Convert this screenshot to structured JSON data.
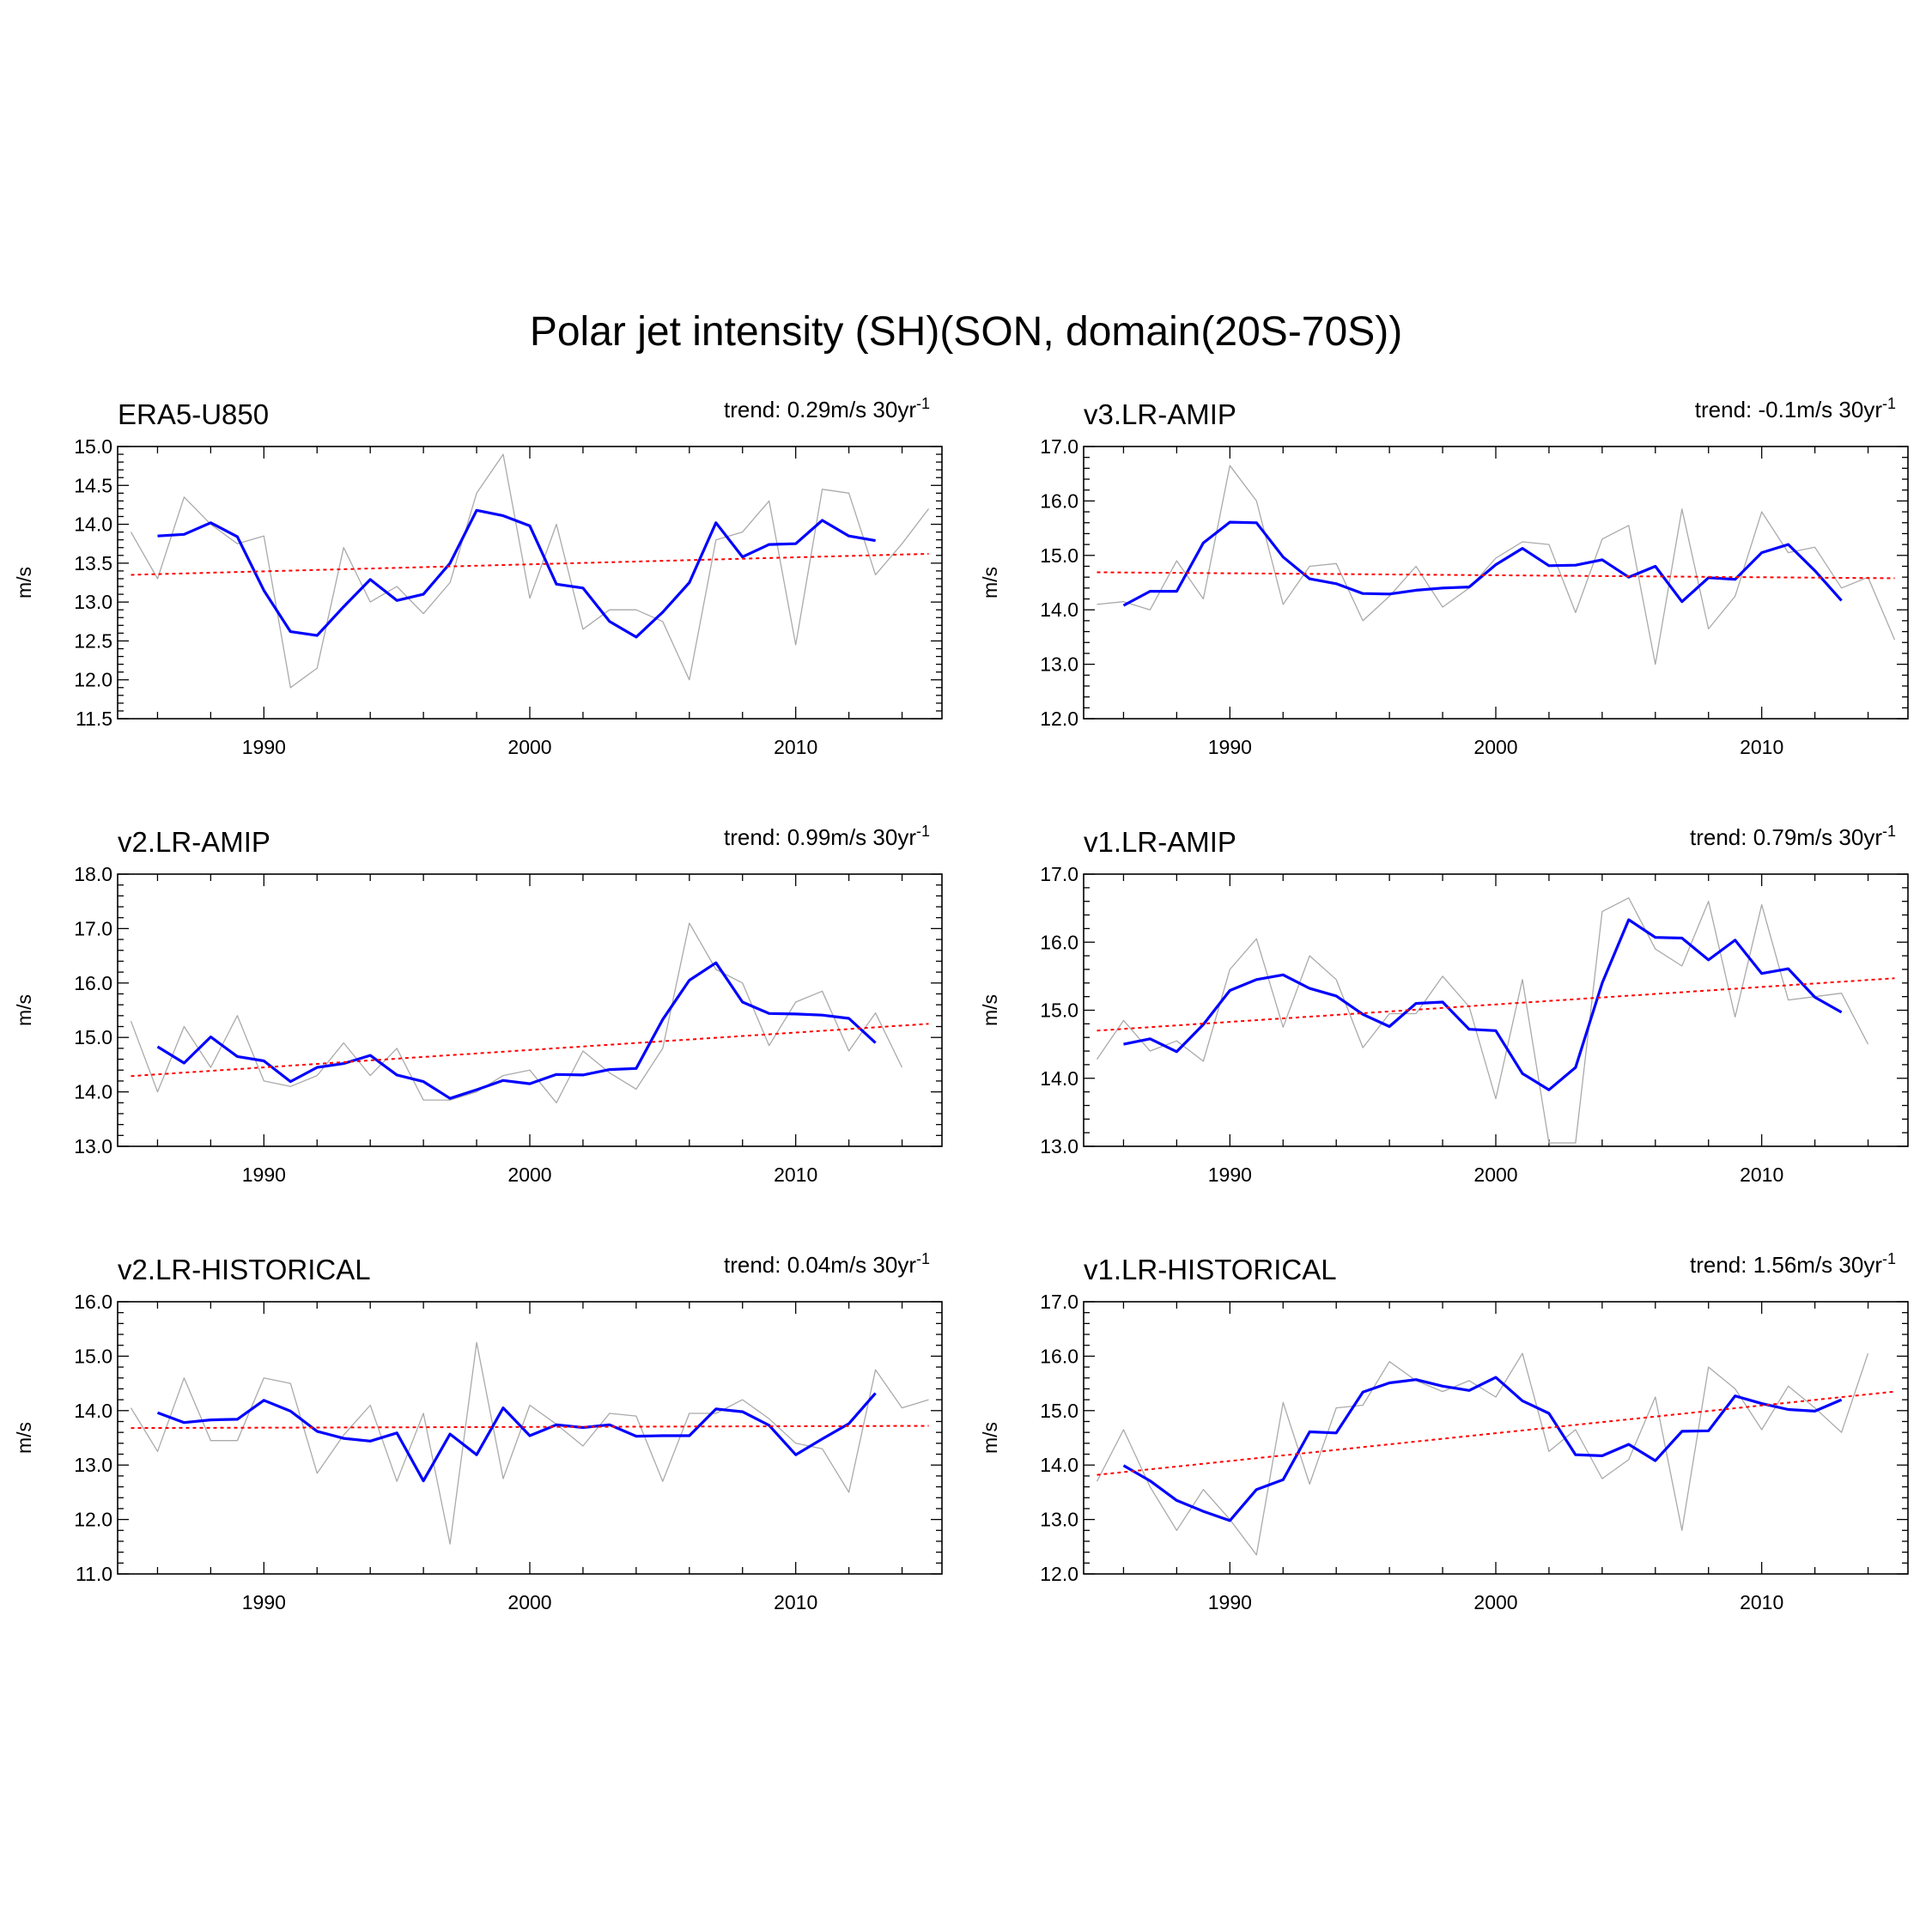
{
  "title": "Polar jet intensity (SH)(SON, domain(20S-70S))",
  "chart_data": [
    {
      "type": "line",
      "title": "ERA5-U850",
      "trend": {
        "prefix": "trend: 0.29m/s 30yr",
        "sup": "-1"
      },
      "ylabel": "m/s",
      "ylim": [
        11.5,
        15.0
      ],
      "ytick_step": 0.5,
      "xlim": [
        1984.5,
        2015.5
      ],
      "xticks": [
        "1990",
        "2000",
        "2010"
      ],
      "years": [
        1985,
        1986,
        1987,
        1988,
        1989,
        1990,
        1991,
        1992,
        1993,
        1994,
        1995,
        1996,
        1997,
        1998,
        1999,
        2000,
        2001,
        2002,
        2003,
        2004,
        2005,
        2006,
        2007,
        2008,
        2009,
        2010,
        2011,
        2012,
        2013,
        2014,
        2015
      ],
      "series": [
        {
          "role": "annual",
          "color": "#aaaaaa",
          "values": [
            13.9,
            13.3,
            14.35,
            14.0,
            13.75,
            13.85,
            11.9,
            12.15,
            13.7,
            13.0,
            13.2,
            12.85,
            13.25,
            14.4,
            14.9,
            13.05,
            14.0,
            12.65,
            12.9,
            12.9,
            12.75,
            12.0,
            13.8,
            13.9,
            14.3,
            12.45,
            14.45,
            14.4,
            13.35,
            13.75,
            14.2
          ]
        },
        {
          "role": "smoothed",
          "color": "#0000ff",
          "values": [
            null,
            13.85,
            13.87,
            14.02,
            13.84,
            13.15,
            12.62,
            12.57,
            12.94,
            13.29,
            13.02,
            13.1,
            13.5,
            14.18,
            14.11,
            13.98,
            13.23,
            13.18,
            12.75,
            12.55,
            12.87,
            13.25,
            14.02,
            13.58,
            13.74,
            13.75,
            14.05,
            13.85,
            13.79,
            null,
            null
          ]
        }
      ],
      "trend_line": {
        "color": "#ff0000",
        "y_start": 13.35,
        "y_end": 13.62
      }
    },
    {
      "type": "line",
      "title": "v3.LR-AMIP",
      "trend": {
        "prefix": "trend: -0.1m/s 30yr",
        "sup": "-1"
      },
      "ylabel": "m/s",
      "ylim": [
        12.0,
        17.0
      ],
      "ytick_step": 1.0,
      "xlim": [
        1984.5,
        2015.5
      ],
      "xticks": [
        "1990",
        "2000",
        "2010"
      ],
      "years": [
        1985,
        1986,
        1987,
        1988,
        1989,
        1990,
        1991,
        1992,
        1993,
        1994,
        1995,
        1996,
        1997,
        1998,
        1999,
        2000,
        2001,
        2002,
        2003,
        2004,
        2005,
        2006,
        2007,
        2008,
        2009,
        2010,
        2011,
        2012,
        2013,
        2014,
        2015
      ],
      "series": [
        {
          "role": "annual",
          "color": "#aaaaaa",
          "values": [
            14.1,
            14.15,
            14.0,
            14.9,
            14.2,
            16.65,
            16.0,
            14.1,
            14.8,
            14.85,
            13.8,
            14.25,
            14.8,
            14.05,
            14.4,
            14.95,
            15.25,
            15.2,
            13.95,
            15.3,
            15.55,
            13.0,
            15.85,
            13.65,
            14.25,
            15.8,
            15.05,
            15.15,
            14.4,
            14.6,
            13.45
          ]
        },
        {
          "role": "smoothed",
          "color": "#0000ff",
          "values": [
            null,
            14.08,
            14.34,
            14.34,
            15.23,
            15.61,
            15.6,
            14.97,
            14.57,
            14.48,
            14.3,
            14.29,
            14.36,
            14.4,
            14.42,
            14.83,
            15.13,
            14.81,
            14.82,
            14.92,
            14.6,
            14.8,
            14.15,
            14.59,
            14.56,
            15.05,
            15.2,
            14.72,
            14.17,
            null,
            null
          ]
        }
      ],
      "trend_line": {
        "color": "#ff0000",
        "y_start": 14.69,
        "y_end": 14.58
      }
    },
    {
      "type": "line",
      "title": "v2.LR-AMIP",
      "trend": {
        "prefix": "trend: 0.99m/s 30yr",
        "sup": "-1"
      },
      "ylabel": "m/s",
      "ylim": [
        13.0,
        18.0
      ],
      "ytick_step": 1.0,
      "xlim": [
        1984.5,
        2015.5
      ],
      "xticks": [
        "1990",
        "2000",
        "2010"
      ],
      "years": [
        1985,
        1986,
        1987,
        1988,
        1989,
        1990,
        1991,
        1992,
        1993,
        1994,
        1995,
        1996,
        1997,
        1998,
        1999,
        2000,
        2001,
        2002,
        2003,
        2004,
        2005,
        2006,
        2007,
        2008,
        2009,
        2010,
        2011,
        2012,
        2013,
        2014,
        2015
      ],
      "series": [
        {
          "role": "annual",
          "color": "#aaaaaa",
          "values": [
            15.3,
            14.0,
            15.2,
            14.45,
            15.4,
            14.2,
            14.1,
            14.3,
            14.9,
            14.3,
            14.8,
            13.85,
            13.85,
            14.0,
            14.3,
            14.4,
            13.8,
            14.75,
            14.35,
            14.05,
            14.8,
            17.1,
            16.25,
            16.0,
            14.85,
            15.65,
            15.85,
            14.75,
            15.45,
            14.45,
            null
          ]
        },
        {
          "role": "smoothed",
          "color": "#0000ff",
          "values": [
            null,
            14.83,
            14.53,
            15.01,
            14.65,
            14.57,
            14.19,
            14.45,
            14.52,
            14.67,
            14.31,
            14.19,
            13.88,
            14.04,
            14.21,
            14.15,
            14.32,
            14.31,
            14.41,
            14.43,
            15.33,
            16.05,
            16.37,
            15.65,
            15.44,
            15.43,
            15.41,
            15.35,
            14.9,
            null,
            null
          ]
        }
      ],
      "trend_line": {
        "color": "#ff0000",
        "y_start": 14.29,
        "y_end": 15.25
      }
    },
    {
      "type": "line",
      "title": "v1.LR-AMIP",
      "trend": {
        "prefix": "trend: 0.79m/s 30yr",
        "sup": "-1"
      },
      "ylabel": "m/s",
      "ylim": [
        13.0,
        17.0
      ],
      "ytick_step": 1.0,
      "xlim": [
        1984.5,
        2015.5
      ],
      "xticks": [
        "1990",
        "2000",
        "2010"
      ],
      "years": [
        1985,
        1986,
        1987,
        1988,
        1989,
        1990,
        1991,
        1992,
        1993,
        1994,
        1995,
        1996,
        1997,
        1998,
        1999,
        2000,
        2001,
        2002,
        2003,
        2004,
        2005,
        2006,
        2007,
        2008,
        2009,
        2010,
        2011,
        2012,
        2013,
        2014,
        2015
      ],
      "series": [
        {
          "role": "annual",
          "color": "#aaaaaa",
          "values": [
            14.28,
            14.85,
            14.4,
            14.55,
            14.25,
            15.6,
            16.05,
            14.75,
            15.8,
            15.45,
            14.45,
            14.95,
            14.95,
            15.5,
            15.05,
            13.7,
            15.45,
            13.05,
            13.05,
            16.45,
            16.65,
            15.9,
            15.65,
            16.6,
            14.9,
            16.55,
            15.15,
            15.2,
            15.25,
            14.5,
            null
          ]
        },
        {
          "role": "smoothed",
          "color": "#0000ff",
          "values": [
            null,
            14.5,
            14.58,
            14.39,
            14.79,
            15.29,
            15.45,
            15.52,
            15.32,
            15.21,
            14.94,
            14.76,
            15.1,
            15.12,
            14.72,
            14.7,
            14.07,
            13.83,
            14.16,
            15.4,
            16.33,
            16.07,
            16.06,
            15.74,
            16.03,
            15.54,
            15.61,
            15.19,
            14.97,
            null,
            null
          ]
        }
      ],
      "trend_line": {
        "color": "#ff0000",
        "y_start": 14.7,
        "y_end": 15.47
      }
    },
    {
      "type": "line",
      "title": "v2.LR-HISTORICAL",
      "trend": {
        "prefix": "trend: 0.04m/s 30yr",
        "sup": "-1"
      },
      "ylabel": "m/s",
      "ylim": [
        11.0,
        16.0
      ],
      "ytick_step": 1.0,
      "xlim": [
        1984.5,
        2015.5
      ],
      "xticks": [
        "1990",
        "2000",
        "2010"
      ],
      "years": [
        1985,
        1986,
        1987,
        1988,
        1989,
        1990,
        1991,
        1992,
        1993,
        1994,
        1995,
        1996,
        1997,
        1998,
        1999,
        2000,
        2001,
        2002,
        2003,
        2004,
        2005,
        2006,
        2007,
        2008,
        2009,
        2010,
        2011,
        2012,
        2013,
        2014,
        2015
      ],
      "series": [
        {
          "role": "annual",
          "color": "#aaaaaa",
          "values": [
            14.05,
            13.25,
            14.6,
            13.45,
            13.45,
            14.6,
            14.5,
            12.85,
            13.55,
            14.1,
            12.7,
            13.95,
            11.55,
            15.25,
            12.75,
            14.1,
            13.75,
            13.35,
            13.95,
            13.9,
            12.7,
            13.95,
            13.95,
            14.2,
            13.85,
            13.4,
            13.3,
            12.5,
            14.75,
            14.05,
            14.2
          ]
        },
        {
          "role": "smoothed",
          "color": "#0000ff",
          "values": [
            null,
            13.96,
            13.78,
            13.83,
            13.84,
            14.19,
            13.99,
            13.62,
            13.49,
            13.44,
            13.59,
            12.71,
            13.57,
            13.19,
            14.05,
            13.54,
            13.74,
            13.69,
            13.74,
            13.53,
            13.54,
            13.54,
            14.03,
            13.98,
            13.73,
            13.19,
            13.48,
            13.76,
            14.32,
            null,
            null
          ]
        }
      ],
      "trend_line": {
        "color": "#ff0000",
        "y_start": 13.68,
        "y_end": 13.72
      }
    },
    {
      "type": "line",
      "title": "v1.LR-HISTORICAL",
      "trend": {
        "prefix": "trend: 1.56m/s 30yr",
        "sup": "-1"
      },
      "ylabel": "m/s",
      "ylim": [
        12.0,
        17.0
      ],
      "ytick_step": 1.0,
      "xlim": [
        1984.5,
        2015.5
      ],
      "xticks": [
        "1990",
        "2000",
        "2010"
      ],
      "years": [
        1985,
        1986,
        1987,
        1988,
        1989,
        1990,
        1991,
        1992,
        1993,
        1994,
        1995,
        1996,
        1997,
        1998,
        1999,
        2000,
        2001,
        2002,
        2003,
        2004,
        2005,
        2006,
        2007,
        2008,
        2009,
        2010,
        2011,
        2012,
        2013,
        2014,
        2015
      ],
      "series": [
        {
          "role": "annual",
          "color": "#aaaaaa",
          "values": [
            13.7,
            14.65,
            13.6,
            12.8,
            13.55,
            13.0,
            12.35,
            15.15,
            13.65,
            15.05,
            15.1,
            15.9,
            15.55,
            15.35,
            15.55,
            15.25,
            16.05,
            14.25,
            14.65,
            13.75,
            14.1,
            15.25,
            12.8,
            15.8,
            15.4,
            14.65,
            15.45,
            15.05,
            14.6,
            16.05,
            null
          ]
        },
        {
          "role": "smoothed",
          "color": "#0000ff",
          "values": [
            null,
            13.99,
            13.71,
            13.35,
            13.15,
            12.98,
            13.55,
            13.73,
            14.61,
            14.59,
            15.34,
            15.51,
            15.57,
            15.45,
            15.37,
            15.61,
            15.18,
            14.95,
            14.19,
            14.17,
            14.38,
            14.08,
            14.62,
            14.63,
            15.27,
            15.13,
            15.02,
            14.99,
            15.2,
            null,
            null
          ]
        }
      ],
      "trend_line": {
        "color": "#ff0000",
        "y_start": 13.82,
        "y_end": 15.35
      }
    }
  ]
}
